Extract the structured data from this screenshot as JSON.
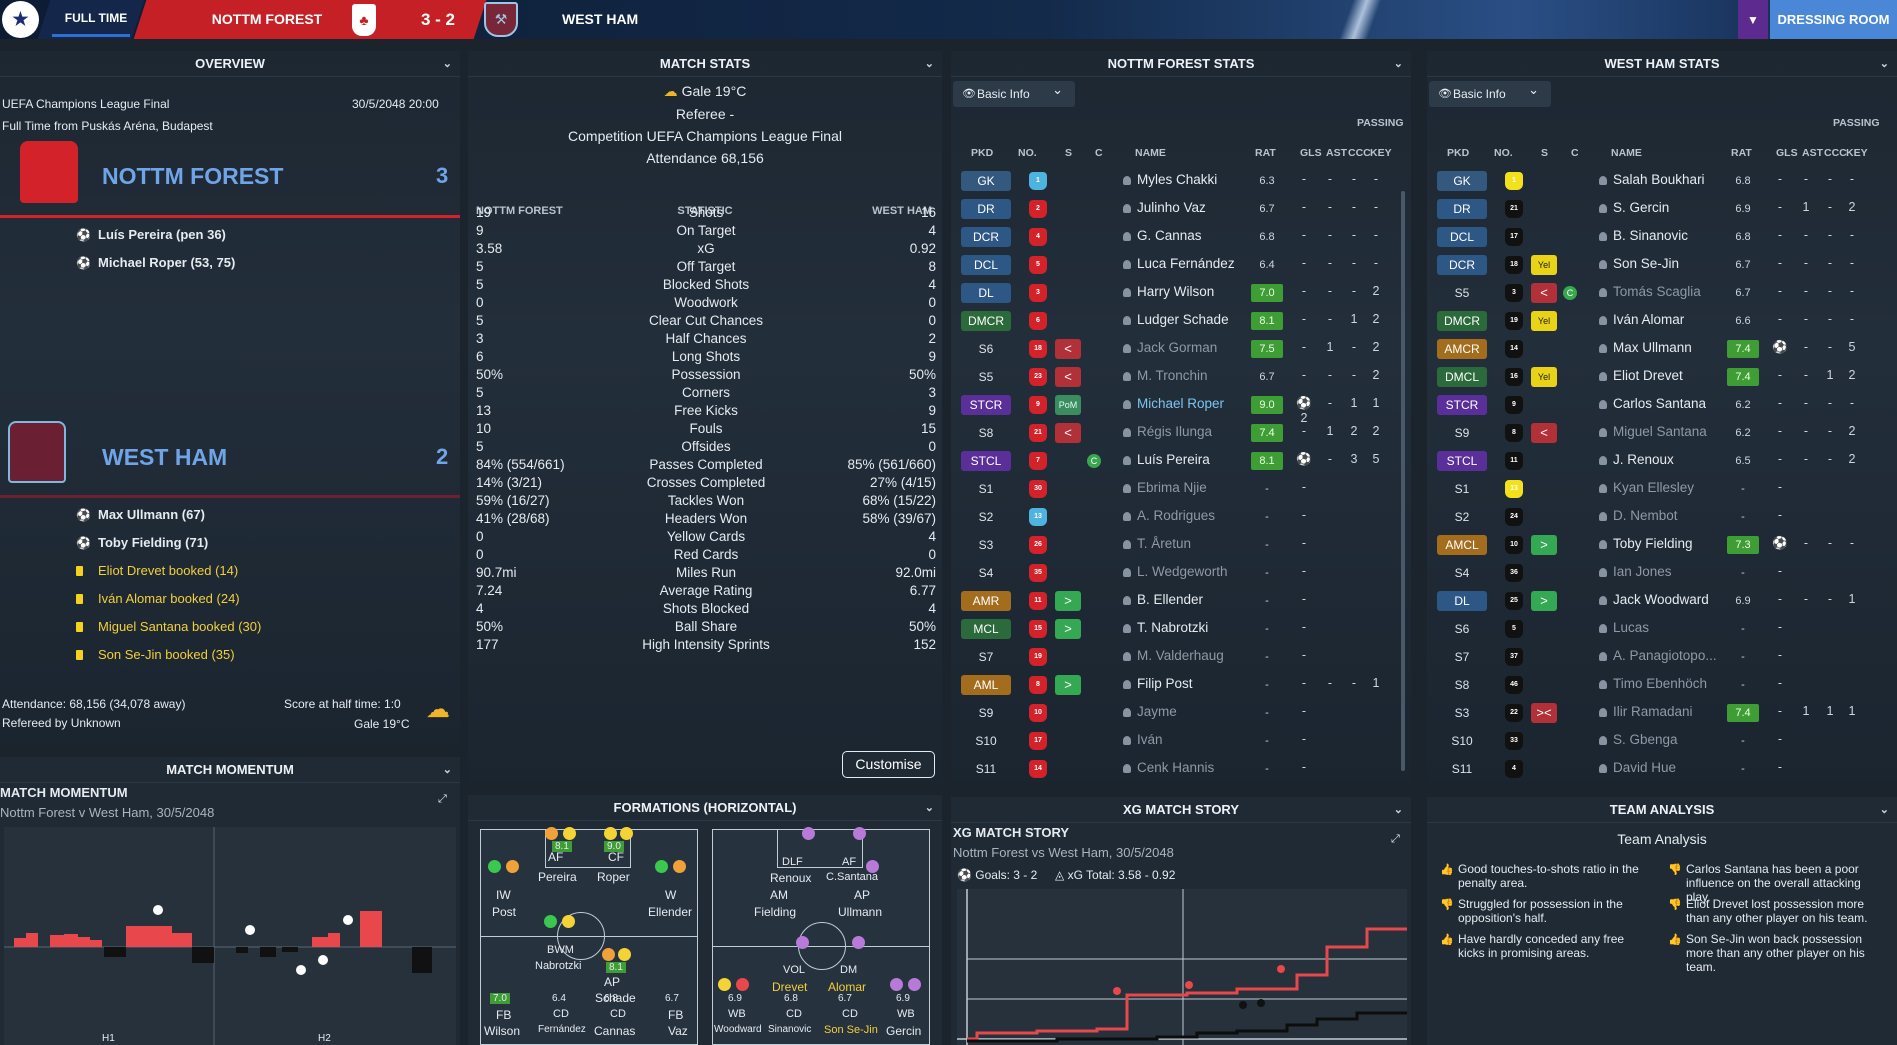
{
  "header": {
    "status": "FULL TIME",
    "home_team": "NOTTM FOREST",
    "score": "3 - 2",
    "away_team": "WEST HAM",
    "dressing_room": "DRESSING ROOM"
  },
  "overview": {
    "title": "OVERVIEW",
    "competition": "UEFA Champions League Final",
    "datetime": "30/5/2048 20:00",
    "venue_line": "Full Time from Puskás Aréna, Budapest",
    "home": {
      "name": "NOTTM FOREST",
      "score": "3",
      "events": [
        "Luís Pereira (pen 36)",
        "Michael Roper (53, 75)"
      ]
    },
    "away": {
      "name": "WEST HAM",
      "score": "2",
      "goals": [
        "Max Ullmann (67)",
        "Toby Fielding (71)"
      ],
      "bookings": [
        "Eliot Drevet booked (14)",
        "Iván Alomar booked (24)",
        "Miguel Santana booked (30)",
        "Son Se-Jin booked (35)"
      ]
    },
    "attendance": "Attendance: 68,156 (34,078 away)",
    "referee": "Refereed by Unknown",
    "halftime": "Score at half time: 1:0",
    "weather": "Gale 19°C"
  },
  "momentum": {
    "title": "MATCH MOMENTUM",
    "heading": "MATCH MOMENTUM",
    "subtitle": "Nottm Forest v West Ham, 30/5/2048",
    "h1": "H1",
    "h2": "H2"
  },
  "match_stats": {
    "title": "MATCH STATS",
    "weather": "Gale 19°C",
    "referee": "Referee -",
    "competition": "Competition UEFA Champions League Final",
    "attendance": "Attendance 68,156",
    "col_home": "NOTTM FOREST",
    "col_stat": "STATISTIC",
    "col_away": "WEST HAM",
    "rows": [
      [
        "19",
        "Shots",
        "16"
      ],
      [
        "9",
        "On Target",
        "4"
      ],
      [
        "3.58",
        "xG",
        "0.92"
      ],
      [
        "5",
        "Off Target",
        "8"
      ],
      [
        "5",
        "Blocked Shots",
        "4"
      ],
      [
        "0",
        "Woodwork",
        "0"
      ],
      [
        "5",
        "Clear Cut Chances",
        "0"
      ],
      [
        "3",
        "Half Chances",
        "2"
      ],
      [
        "6",
        "Long Shots",
        "9"
      ],
      [
        "50%",
        "Possession",
        "50%"
      ],
      [
        "5",
        "Corners",
        "3"
      ],
      [
        "13",
        "Free Kicks",
        "9"
      ],
      [
        "10",
        "Fouls",
        "15"
      ],
      [
        "5",
        "Offsides",
        "0"
      ],
      [
        "84% (554/661)",
        "Passes Completed",
        "85% (561/660)"
      ],
      [
        "14% (3/21)",
        "Crosses Completed",
        "27% (4/15)"
      ],
      [
        "59% (16/27)",
        "Tackles Won",
        "68% (15/22)"
      ],
      [
        "41% (28/68)",
        "Headers Won",
        "58% (39/67)"
      ],
      [
        "0",
        "Yellow Cards",
        "4"
      ],
      [
        "0",
        "Red Cards",
        "0"
      ],
      [
        "90.7mi",
        "Miles Run",
        "92.0mi"
      ],
      [
        "7.24",
        "Average Rating",
        "6.77"
      ],
      [
        "4",
        "Shots Blocked",
        "4"
      ],
      [
        "50%",
        "Ball Share",
        "50%"
      ],
      [
        "177",
        "High Intensity Sprints",
        "152"
      ]
    ],
    "customise": "Customise"
  },
  "formations": {
    "title": "FORMATIONS (HORIZONTAL)",
    "home": {
      "af": "AF",
      "cf": "CF",
      "af_name": "Pereira",
      "cf_name": "Roper",
      "af_rat": "8.1",
      "cf_rat": "9.0",
      "iw": "IW",
      "iw_name": "Post",
      "w": "W",
      "w_name": "Ellender",
      "bwm": "BWM",
      "bwm_name": "Nabrotzki",
      "ap": "AP",
      "ap_name": "Schade",
      "ap_rat": "8.1",
      "fb_l": "FB",
      "fb_l_name": "Wilson",
      "fb_l_rat": "7.0",
      "cd1": "CD",
      "cd1_name": "Fernández",
      "cd1_rat": "6.4",
      "cd2": "CD",
      "cd2_name": "Cannas",
      "cd2_rat": "6.8",
      "fb_r": "FB",
      "fb_r_name": "Vaz",
      "fb_r_rat": "6.7"
    },
    "away": {
      "dlf": "DLF",
      "af": "AF",
      "dlf_name": "Renoux",
      "af_name": "C.Santana",
      "am": "AM",
      "am_name": "Fielding",
      "ap": "AP",
      "ap_name": "Ullmann",
      "vol": "VOL",
      "vol_name": "Drevet",
      "dm": "DM",
      "dm_name": "Alomar",
      "wb_l": "WB",
      "wb_l_name": "Woodward",
      "wb_l_rat": "6.9",
      "cd1": "CD",
      "cd1_name": "Sinanovic",
      "cd1_rat": "6.8",
      "cd2": "CD",
      "cd2_name": "Son Se-Jin",
      "cd2_rat": "6.7",
      "wb_r": "WB",
      "wb_r_name": "Gercin",
      "wb_r_rat": "6.9"
    }
  },
  "forest_stats": {
    "title": "NOTTM FOREST STATS",
    "filter": "Basic Info",
    "group": "PASSING",
    "cols": {
      "pkd": "PKD",
      "no": "NO.",
      "s": "S",
      "c": "C",
      "name": "NAME",
      "rat": "RAT",
      "gls": "GLS",
      "ast": "AST",
      "ccc": "CCC",
      "key": "KEY"
    },
    "players": [
      {
        "pos": "GK",
        "type": "gk",
        "no": "1",
        "kit": "#4fb3e0",
        "st": "",
        "name": "Myles Chakki",
        "rat": "6.3",
        "g": false,
        "gls": "-",
        "ast": "-",
        "ccc": "-",
        "key": "-"
      },
      {
        "pos": "DR",
        "type": "def",
        "no": "2",
        "kit": "#d3222a",
        "st": "",
        "name": "Julinho Vaz",
        "rat": "6.7",
        "g": false,
        "gls": "-",
        "ast": "-",
        "ccc": "-",
        "key": "-"
      },
      {
        "pos": "DCR",
        "type": "def",
        "no": "4",
        "kit": "#d3222a",
        "st": "",
        "name": "G. Cannas",
        "rat": "6.8",
        "g": false,
        "gls": "-",
        "ast": "-",
        "ccc": "-",
        "key": "-"
      },
      {
        "pos": "DCL",
        "type": "def",
        "no": "5",
        "kit": "#d3222a",
        "st": "",
        "name": "Luca Fernández",
        "rat": "6.4",
        "g": false,
        "gls": "-",
        "ast": "-",
        "ccc": "-",
        "key": "-"
      },
      {
        "pos": "DL",
        "type": "def",
        "no": "3",
        "kit": "#d3222a",
        "st": "",
        "name": "Harry Wilson",
        "rat": "7.0",
        "g": true,
        "gls": "-",
        "ast": "-",
        "ccc": "-",
        "key": "2"
      },
      {
        "pos": "DMCR",
        "type": "mid",
        "no": "6",
        "kit": "#d3222a",
        "st": "",
        "name": "Ludger Schade",
        "rat": "8.1",
        "g": true,
        "gls": "-",
        "ast": "-",
        "ccc": "1",
        "key": "2"
      },
      {
        "pos": "S6",
        "type": "sub",
        "no": "18",
        "kit": "#d3222a",
        "st": "red",
        "name": "Jack Gorman",
        "rat": "7.5",
        "g": true,
        "dim": true,
        "gls": "-",
        "ast": "1",
        "ccc": "-",
        "key": "2"
      },
      {
        "pos": "S5",
        "type": "sub",
        "no": "23",
        "kit": "#d3222a",
        "st": "red",
        "name": "M. Tronchin",
        "rat": "6.7",
        "g": false,
        "dim": true,
        "gls": "-",
        "ast": "-",
        "ccc": "-",
        "key": "2"
      },
      {
        "pos": "STCR",
        "type": "att",
        "no": "9",
        "kit": "#d3222a",
        "st": "pom",
        "stlabel": "PoM",
        "name": "Michael Roper",
        "rat": "9.0",
        "g": true,
        "mom": true,
        "gls": "⚽2",
        "ast": "-",
        "ccc": "1",
        "key": "1"
      },
      {
        "pos": "S8",
        "type": "sub",
        "no": "21",
        "kit": "#d3222a",
        "st": "red",
        "name": "Régis Ilunga",
        "rat": "7.4",
        "g": true,
        "dim": true,
        "gls": "-",
        "ast": "1",
        "ccc": "2",
        "key": "2"
      },
      {
        "pos": "STCL",
        "type": "att",
        "no": "7",
        "kit": "#d3222a",
        "st": "",
        "cap": true,
        "name": "Luís Pereira",
        "rat": "8.1",
        "g": true,
        "gls": "⚽",
        "ast": "-",
        "ccc": "3",
        "key": "5"
      },
      {
        "pos": "S1",
        "type": "sub",
        "no": "30",
        "kit": "#d3222a",
        "st": "",
        "name": "Ebrima Njie",
        "rat": "-",
        "g": false,
        "dim": true,
        "gls": "-",
        "ast": "",
        "ccc": "",
        "key": ""
      },
      {
        "pos": "S2",
        "type": "sub",
        "no": "13",
        "kit": "#4fb3e0",
        "st": "",
        "name": "A. Rodrigues",
        "rat": "-",
        "g": false,
        "dim": true,
        "gls": "-",
        "ast": "",
        "ccc": "",
        "key": ""
      },
      {
        "pos": "S3",
        "type": "sub",
        "no": "26",
        "kit": "#d3222a",
        "st": "",
        "name": "T. Åretun",
        "rat": "-",
        "g": false,
        "dim": true,
        "gls": "-",
        "ast": "",
        "ccc": "",
        "key": ""
      },
      {
        "pos": "S4",
        "type": "sub",
        "no": "35",
        "kit": "#d3222a",
        "st": "",
        "name": "L. Wedgeworth",
        "rat": "-",
        "g": false,
        "dim": true,
        "gls": "-",
        "ast": "",
        "ccc": "",
        "key": ""
      },
      {
        "pos": "AMR",
        "type": "amr",
        "no": "11",
        "kit": "#d3222a",
        "st": "green",
        "name": "B. Ellender",
        "rat": "-",
        "g": false,
        "gls": "-",
        "ast": "",
        "ccc": "",
        "key": ""
      },
      {
        "pos": "MCL",
        "type": "mid",
        "no": "15",
        "kit": "#d3222a",
        "st": "green",
        "name": "T. Nabrotzki",
        "rat": "-",
        "g": false,
        "gls": "-",
        "ast": "",
        "ccc": "",
        "key": ""
      },
      {
        "pos": "S7",
        "type": "sub",
        "no": "19",
        "kit": "#d3222a",
        "st": "",
        "name": "M. Valderhaug",
        "rat": "-",
        "g": false,
        "dim": true,
        "gls": "-",
        "ast": "",
        "ccc": "",
        "key": ""
      },
      {
        "pos": "AML",
        "type": "amr",
        "no": "8",
        "kit": "#d3222a",
        "st": "green",
        "name": "Filip Post",
        "rat": "-",
        "g": false,
        "gls": "-",
        "ast": "-",
        "ccc": "-",
        "key": "1"
      },
      {
        "pos": "S9",
        "type": "sub",
        "no": "10",
        "kit": "#d3222a",
        "st": "",
        "name": "Jayme",
        "rat": "-",
        "g": false,
        "dim": true,
        "gls": "-",
        "ast": "",
        "ccc": "",
        "key": ""
      },
      {
        "pos": "S10",
        "type": "sub",
        "no": "17",
        "kit": "#d3222a",
        "st": "",
        "name": "Iván",
        "rat": "-",
        "g": false,
        "dim": true,
        "gls": "-",
        "ast": "",
        "ccc": "",
        "key": ""
      },
      {
        "pos": "S11",
        "type": "sub",
        "no": "14",
        "kit": "#d3222a",
        "st": "",
        "name": "Cenk Hannis",
        "rat": "-",
        "g": false,
        "dim": true,
        "gls": "-",
        "ast": "",
        "ccc": "",
        "key": ""
      }
    ]
  },
  "westham_stats": {
    "title": "WEST HAM STATS",
    "filter": "Basic Info",
    "group": "PASSING",
    "cols": {
      "pkd": "PKD",
      "no": "NO.",
      "s": "S",
      "c": "C",
      "name": "NAME",
      "rat": "RAT",
      "gls": "GLS",
      "ast": "AST",
      "ccc": "CCC",
      "key": "KEY"
    },
    "players": [
      {
        "pos": "GK",
        "type": "gk",
        "no": "1",
        "kit": "#f3e21b",
        "st": "",
        "name": "Salah Boukhari",
        "rat": "6.8",
        "g": false,
        "gls": "-",
        "ast": "-",
        "ccc": "-",
        "key": "-"
      },
      {
        "pos": "DR",
        "type": "def",
        "no": "21",
        "kit": "#111",
        "st": "",
        "name": "S. Gercin",
        "rat": "6.9",
        "g": false,
        "gls": "-",
        "ast": "1",
        "ccc": "-",
        "key": "2"
      },
      {
        "pos": "DCL",
        "type": "def",
        "no": "17",
        "kit": "#111",
        "st": "",
        "name": "B. Sinanovic",
        "rat": "6.8",
        "g": false,
        "gls": "-",
        "ast": "-",
        "ccc": "-",
        "key": "-"
      },
      {
        "pos": "DCR",
        "type": "def",
        "no": "18",
        "kit": "#111",
        "st": "yel",
        "stlabel": "Yel",
        "name": "Son Se-Jin",
        "rat": "6.7",
        "g": false,
        "gls": "-",
        "ast": "-",
        "ccc": "-",
        "key": "-"
      },
      {
        "pos": "S5",
        "type": "sub",
        "no": "3",
        "kit": "#111",
        "st": "red",
        "cap": true,
        "name": "Tomás Scaglia",
        "rat": "6.7",
        "g": false,
        "dim": true,
        "gls": "-",
        "ast": "-",
        "ccc": "-",
        "key": "-"
      },
      {
        "pos": "DMCR",
        "type": "mid",
        "no": "19",
        "kit": "#111",
        "st": "yel",
        "stlabel": "Yel",
        "name": "Iván Alomar",
        "rat": "6.6",
        "g": false,
        "gls": "-",
        "ast": "-",
        "ccc": "-",
        "key": "-"
      },
      {
        "pos": "AMCR",
        "type": "amr",
        "no": "14",
        "kit": "#111",
        "st": "",
        "name": "Max Ullmann",
        "rat": "7.4",
        "g": true,
        "gls": "⚽",
        "ast": "-",
        "ccc": "-",
        "key": "5"
      },
      {
        "pos": "DMCL",
        "type": "mid",
        "no": "16",
        "kit": "#111",
        "st": "yel",
        "stlabel": "Yel",
        "name": "Eliot Drevet",
        "rat": "7.4",
        "g": true,
        "gls": "-",
        "ast": "-",
        "ccc": "1",
        "key": "2"
      },
      {
        "pos": "STCR",
        "type": "att",
        "no": "9",
        "kit": "#111",
        "st": "",
        "name": "Carlos Santana",
        "rat": "6.2",
        "g": false,
        "gls": "-",
        "ast": "-",
        "ccc": "-",
        "key": "-"
      },
      {
        "pos": "S9",
        "type": "sub",
        "no": "8",
        "kit": "#111",
        "st": "red",
        "name": "Miguel Santana",
        "rat": "6.2",
        "g": false,
        "dim": true,
        "gls": "-",
        "ast": "-",
        "ccc": "-",
        "key": "2"
      },
      {
        "pos": "STCL",
        "type": "att",
        "no": "11",
        "kit": "#111",
        "st": "",
        "name": "J. Renoux",
        "rat": "6.5",
        "g": false,
        "gls": "-",
        "ast": "-",
        "ccc": "-",
        "key": "2"
      },
      {
        "pos": "S1",
        "type": "sub",
        "no": "13",
        "kit": "#f3e21b",
        "st": "",
        "name": "Kyan Ellesley",
        "rat": "-",
        "g": false,
        "dim": true,
        "gls": "-",
        "ast": "",
        "ccc": "",
        "key": ""
      },
      {
        "pos": "S2",
        "type": "sub",
        "no": "24",
        "kit": "#111",
        "st": "",
        "name": "D. Nembot",
        "rat": "-",
        "g": false,
        "dim": true,
        "gls": "-",
        "ast": "",
        "ccc": "",
        "key": ""
      },
      {
        "pos": "AMCL",
        "type": "amr",
        "no": "10",
        "kit": "#111",
        "st": "green",
        "name": "Toby Fielding",
        "rat": "7.3",
        "g": true,
        "gls": "⚽",
        "ast": "-",
        "ccc": "-",
        "key": "-"
      },
      {
        "pos": "S4",
        "type": "sub",
        "no": "36",
        "kit": "#111",
        "st": "",
        "name": "Ian Jones",
        "rat": "-",
        "g": false,
        "dim": true,
        "gls": "-",
        "ast": "",
        "ccc": "",
        "key": ""
      },
      {
        "pos": "DL",
        "type": "def",
        "no": "25",
        "kit": "#111",
        "st": "green",
        "name": "Jack Woodward",
        "rat": "6.9",
        "g": false,
        "gls": "-",
        "ast": "-",
        "ccc": "-",
        "key": "1"
      },
      {
        "pos": "S6",
        "type": "sub",
        "no": "5",
        "kit": "#111",
        "st": "",
        "name": "Lucas",
        "rat": "-",
        "g": false,
        "dim": true,
        "gls": "-",
        "ast": "",
        "ccc": "",
        "key": ""
      },
      {
        "pos": "S7",
        "type": "sub",
        "no": "37",
        "kit": "#111",
        "st": "",
        "name": "A. Panagiotopo...",
        "rat": "-",
        "g": false,
        "dim": true,
        "gls": "-",
        "ast": "",
        "ccc": "",
        "key": ""
      },
      {
        "pos": "S8",
        "type": "sub",
        "no": "46",
        "kit": "#111",
        "st": "",
        "name": "Timo Ebenhöch",
        "rat": "-",
        "g": false,
        "dim": true,
        "gls": "-",
        "ast": "",
        "ccc": "",
        "key": ""
      },
      {
        "pos": "S3",
        "type": "sub",
        "no": "22",
        "kit": "#111",
        "st": "red2",
        "name": "Ilir Ramadani",
        "rat": "7.4",
        "g": true,
        "dim": true,
        "gls": "-",
        "ast": "1",
        "ccc": "1",
        "key": "1"
      },
      {
        "pos": "S10",
        "type": "sub",
        "no": "33",
        "kit": "#111",
        "st": "",
        "name": "S. Gbenga",
        "rat": "-",
        "g": false,
        "dim": true,
        "gls": "-",
        "ast": "",
        "ccc": "",
        "key": ""
      },
      {
        "pos": "S11",
        "type": "sub",
        "no": "4",
        "kit": "#111",
        "st": "",
        "name": "David Hue",
        "rat": "-",
        "g": false,
        "dim": true,
        "gls": "-",
        "ast": "",
        "ccc": "",
        "key": ""
      }
    ]
  },
  "xg_story": {
    "title": "XG MATCH STORY",
    "heading": "XG MATCH STORY",
    "subtitle": "Nottm Forest vs West Ham, 30/5/2048",
    "goals": "Goals: 3 - 2",
    "xg_total": "xG Total: 3.58 - 0.92"
  },
  "team_analysis": {
    "title": "TEAM ANALYSIS",
    "heading": "Team Analysis",
    "left": [
      {
        "type": "up",
        "text": "Good touches-to-shots ratio in the penalty area."
      },
      {
        "type": "down",
        "text": "Struggled for possession in the opposition's half."
      },
      {
        "type": "up",
        "text": "Have hardly conceded any free kicks in promising areas."
      }
    ],
    "right": [
      {
        "type": "down",
        "text": "Carlos Santana has been a poor influence on the overall attacking play."
      },
      {
        "type": "down",
        "text": "Eliot Drevet lost possession more than any other player on his team."
      },
      {
        "type": "up",
        "text": "Son Se-Jin won back possession more than any other player on his team."
      }
    ]
  },
  "colors": {
    "forest": "#d3222a",
    "westham": "#7a2639",
    "accent": "#6fa5e6"
  }
}
